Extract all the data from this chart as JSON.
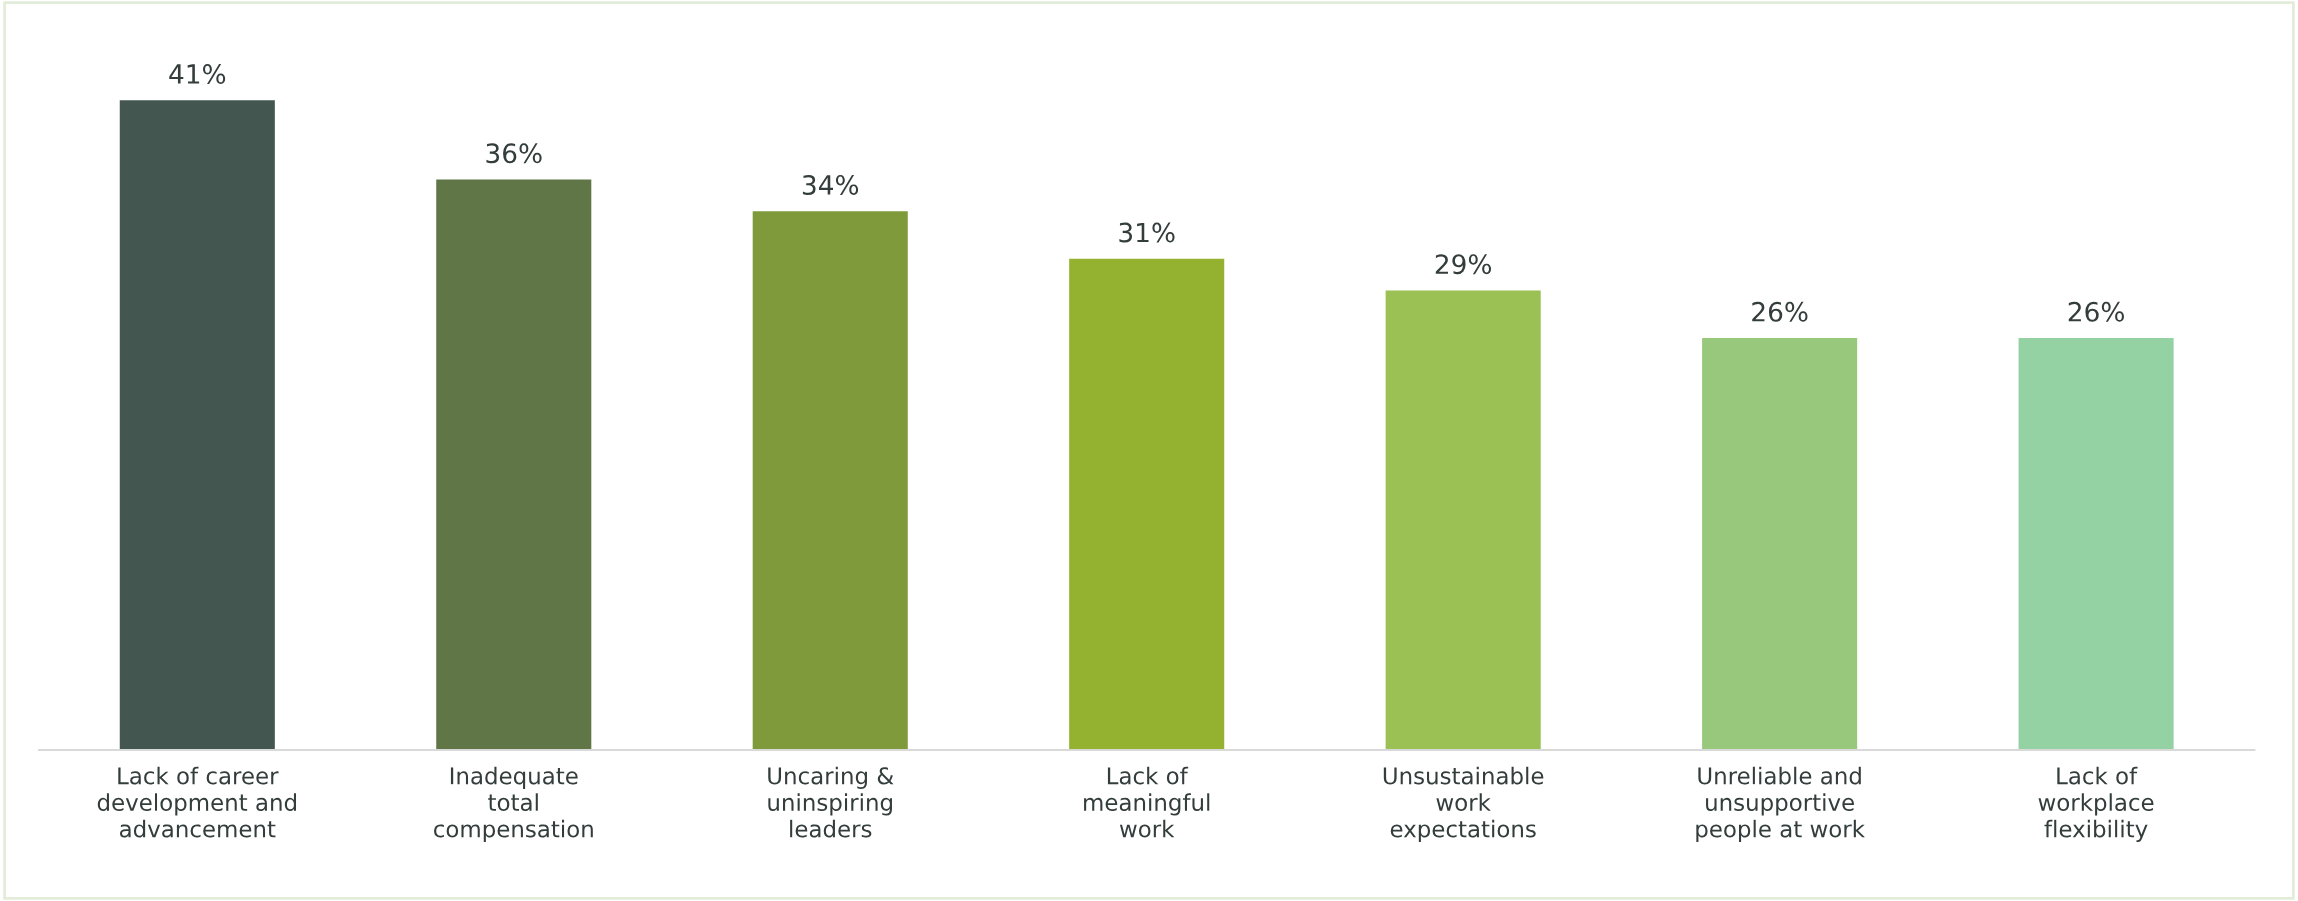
{
  "chart_data": {
    "type": "bar",
    "categories": [
      "Lack of career\ndevelopment and\nadvancement",
      "Inadequate\ntotal\ncompensation",
      "Uncaring &\nuninspiring\nleaders",
      "Lack of\nmeaningful\nwork",
      "Unsustainable\nwork\nexpectations",
      "Unreliable and\nunsupportive\npeople at work",
      "Lack of\nworkplace\nflexibility"
    ],
    "values": [
      41,
      36,
      34,
      31,
      29,
      26,
      26
    ],
    "colors": [
      "#43564f",
      "#607646",
      "#7e9a3a",
      "#94b22f",
      "#9bc053",
      "#98c87c",
      "#94d1a3"
    ],
    "value_labels": [
      "41%",
      "36%",
      "34%",
      "31%",
      "29%",
      "26%",
      "26%"
    ],
    "grid": false,
    "legend": false
  }
}
